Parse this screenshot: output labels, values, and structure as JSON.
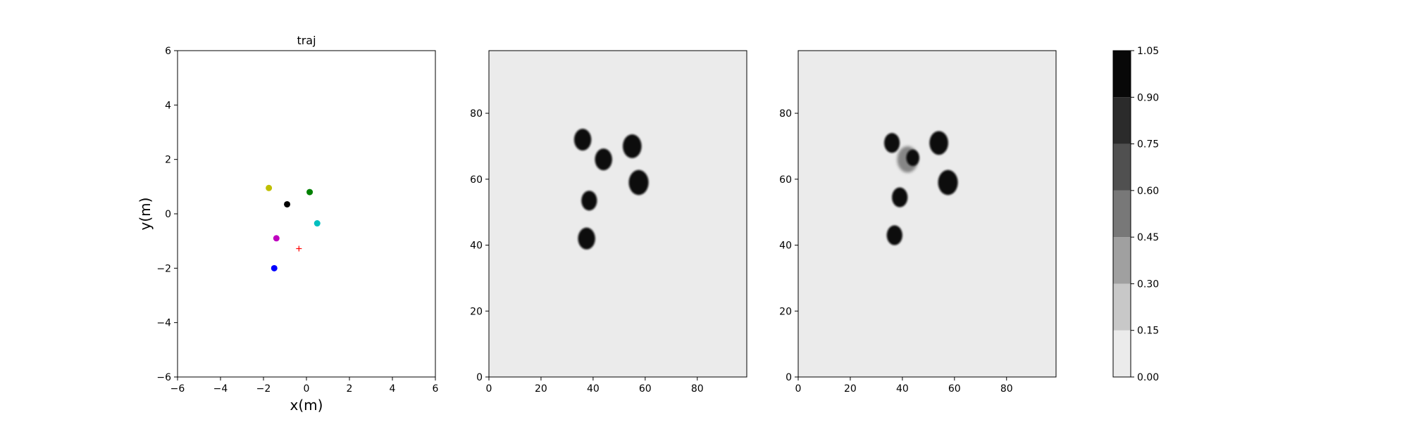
{
  "chart_data": [
    {
      "type": "scatter",
      "title": "traj",
      "xlabel": "x(m)",
      "ylabel": "y(m)",
      "xlim": [
        -6,
        6
      ],
      "ylim": [
        -6,
        6
      ],
      "xticks": [
        "−6",
        "−4",
        "−2",
        "0",
        "2",
        "4",
        "6"
      ],
      "yticks": [
        "−6",
        "−4",
        "−2",
        "0",
        "2",
        "4",
        "6"
      ],
      "xtick_values": [
        -6,
        -4,
        -2,
        0,
        2,
        4,
        6
      ],
      "ytick_values": [
        -6,
        -4,
        -2,
        0,
        2,
        4,
        6
      ],
      "grid": false,
      "points": [
        {
          "x": -1.75,
          "y": 0.95,
          "color": "#bfbf00",
          "marker": "circle"
        },
        {
          "x": 0.15,
          "y": 0.8,
          "color": "#008000",
          "marker": "circle"
        },
        {
          "x": -0.9,
          "y": 0.35,
          "color": "#000000",
          "marker": "circle"
        },
        {
          "x": 0.5,
          "y": -0.35,
          "color": "#00bfbf",
          "marker": "circle"
        },
        {
          "x": -1.4,
          "y": -0.9,
          "color": "#bf00bf",
          "marker": "circle"
        },
        {
          "x": -0.35,
          "y": -1.28,
          "color": "#ff0000",
          "marker": "plus"
        },
        {
          "x": -1.5,
          "y": -2.0,
          "color": "#0000ff",
          "marker": "circle"
        }
      ]
    },
    {
      "type": "heatmap",
      "title": "",
      "xlabel": "",
      "ylabel": "",
      "xlim": [
        0,
        99
      ],
      "ylim": [
        0,
        99
      ],
      "xticks": [
        "0",
        "20",
        "40",
        "60",
        "80"
      ],
      "yticks": [
        "0",
        "20",
        "40",
        "60",
        "80"
      ],
      "xtick_values": [
        0,
        20,
        40,
        60,
        80
      ],
      "ytick_values": [
        0,
        20,
        40,
        60,
        80
      ],
      "background_value": 0.0,
      "blobs": [
        {
          "x": 36,
          "y": 72,
          "r": 3.3,
          "value": 1.0
        },
        {
          "x": 55,
          "y": 70,
          "r": 3.6,
          "value": 1.0
        },
        {
          "x": 44,
          "y": 66,
          "r": 3.3,
          "value": 1.0
        },
        {
          "x": 57.5,
          "y": 59,
          "r": 3.8,
          "value": 1.0
        },
        {
          "x": 38.5,
          "y": 53.5,
          "r": 3.0,
          "value": 1.0
        },
        {
          "x": 37.5,
          "y": 42,
          "r": 3.3,
          "value": 1.0
        }
      ]
    },
    {
      "type": "heatmap",
      "title": "",
      "xlabel": "",
      "ylabel": "",
      "xlim": [
        0,
        99
      ],
      "ylim": [
        0,
        99
      ],
      "xticks": [
        "0",
        "20",
        "40",
        "60",
        "80"
      ],
      "yticks": [
        "0",
        "20",
        "40",
        "60",
        "80"
      ],
      "xtick_values": [
        0,
        20,
        40,
        60,
        80
      ],
      "ytick_values": [
        0,
        20,
        40,
        60,
        80
      ],
      "background_value": 0.0,
      "blobs": [
        {
          "x": 36,
          "y": 71,
          "r": 3.0,
          "value": 1.0
        },
        {
          "x": 42,
          "y": 66,
          "r": 4.0,
          "value": 0.45
        },
        {
          "x": 44,
          "y": 66.5,
          "r": 2.5,
          "value": 1.0
        },
        {
          "x": 54,
          "y": 71,
          "r": 3.6,
          "value": 1.0
        },
        {
          "x": 57.5,
          "y": 59,
          "r": 3.8,
          "value": 1.0
        },
        {
          "x": 39,
          "y": 54.5,
          "r": 3.0,
          "value": 1.0
        },
        {
          "x": 37,
          "y": 43,
          "r": 3.0,
          "value": 1.0
        }
      ]
    }
  ],
  "colorbar": {
    "levels": [
      0.0,
      0.15,
      0.3,
      0.45,
      0.6,
      0.75,
      0.9,
      1.05
    ],
    "labels": [
      "0.00",
      "0.15",
      "0.30",
      "0.45",
      "0.60",
      "0.75",
      "0.90",
      "1.05"
    ],
    "colors": [
      "#ebebeb",
      "#c8c8c8",
      "#a0a0a0",
      "#787878",
      "#505050",
      "#2b2b2b",
      "#080808"
    ]
  }
}
